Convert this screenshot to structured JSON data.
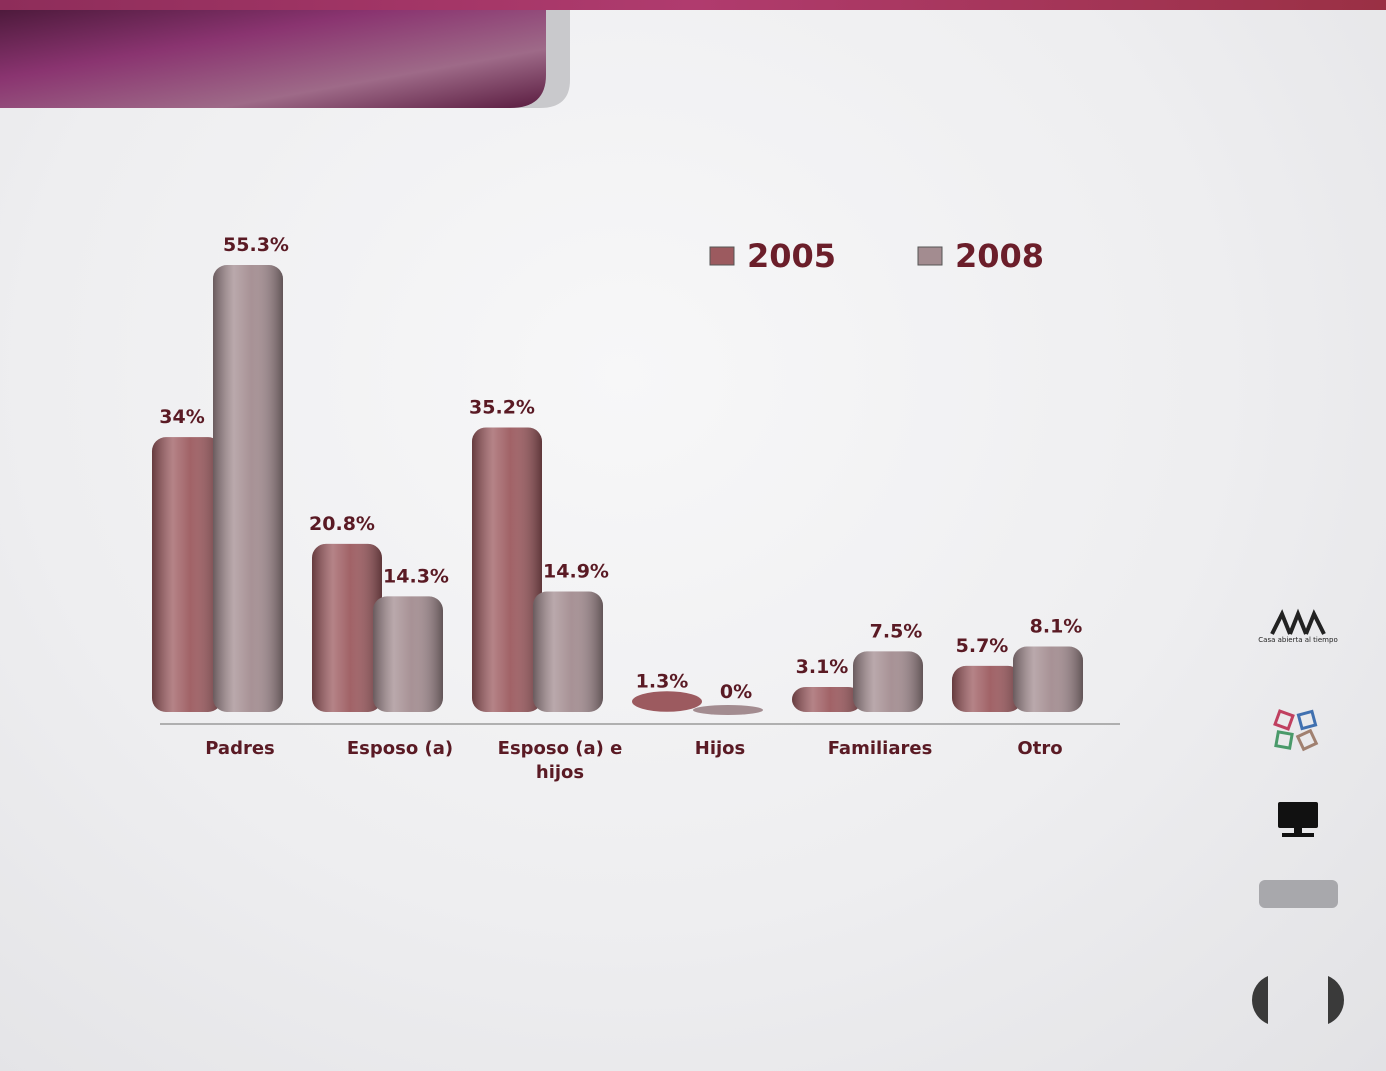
{
  "chart_data": {
    "type": "bar",
    "categories": [
      "Padres",
      "Esposo (a)",
      "Esposo (a) e hijos",
      "Hijos",
      "Familiares",
      "Otro"
    ],
    "series": [
      {
        "name": "2005",
        "color": "#9c5a5f",
        "values": [
          34,
          20.8,
          35.2,
          1.3,
          3.1,
          5.7
        ],
        "value_labels": [
          "34%",
          "20.8%",
          "35.2%",
          "1.3%",
          "3.1%",
          "5.7%"
        ]
      },
      {
        "name": "2008",
        "color": "#a38c90",
        "values": [
          55.3,
          14.3,
          14.9,
          0,
          7.5,
          8.1
        ],
        "value_labels": [
          "55.3%",
          "14.3%",
          "14.9%",
          "0%",
          "7.5%",
          "8.1%"
        ]
      }
    ],
    "legend": "top-right"
  },
  "logo": {
    "caption": "Casa abierta al tiempo"
  }
}
